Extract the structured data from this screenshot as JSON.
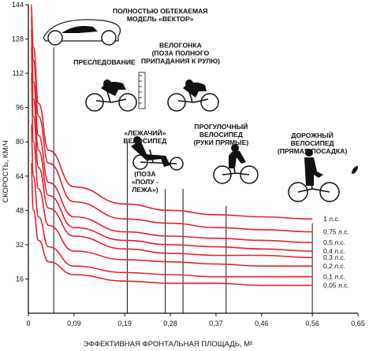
{
  "chart_data": {
    "type": "line",
    "xlabel": "ЭФФЕКТИВНАЯ ФРОНТАЛЬНАЯ ПЛОЩАДЬ, М²",
    "ylabel": "СКОРОСТЬ, КМ/Ч",
    "xlim": [
      0,
      0.65
    ],
    "ylim": [
      0,
      144
    ],
    "x_ticks": [
      "0",
      "0,09",
      "0,19",
      "0,28",
      "0,37",
      "0,46",
      "0,56",
      "0,65"
    ],
    "y_ticks": [
      "16",
      "32",
      "48",
      "64",
      "80",
      "96",
      "112",
      "128",
      "144"
    ],
    "grid": false,
    "series": [
      {
        "name": "1 л.с.",
        "x": [
          0.005,
          0.01,
          0.02,
          0.04,
          0.09,
          0.19,
          0.28,
          0.37,
          0.46,
          0.56
        ],
        "y": [
          144,
          124,
          98,
          76,
          59,
          51,
          48,
          46,
          45,
          44
        ]
      },
      {
        "name": "0,75 л.с.",
        "x": [
          0.005,
          0.01,
          0.02,
          0.04,
          0.09,
          0.19,
          0.28,
          0.37,
          0.46,
          0.56
        ],
        "y": [
          144,
          118,
          92,
          70,
          52,
          44,
          42,
          40,
          39,
          38
        ]
      },
      {
        "name": "0,5 л.с.",
        "x": [
          0.005,
          0.01,
          0.02,
          0.04,
          0.09,
          0.19,
          0.28,
          0.37,
          0.46,
          0.56
        ],
        "y": [
          138,
          108,
          83,
          61,
          45,
          38,
          36,
          35,
          34,
          33
        ]
      },
      {
        "name": "0,4 л.с.",
        "x": [
          0.005,
          0.01,
          0.02,
          0.04,
          0.09,
          0.19,
          0.28,
          0.37,
          0.46,
          0.56
        ],
        "y": [
          132,
          100,
          76,
          55,
          40,
          34,
          32,
          31,
          30,
          29
        ]
      },
      {
        "name": "0,3 л.с.",
        "x": [
          0.005,
          0.01,
          0.02,
          0.04,
          0.09,
          0.19,
          0.28,
          0.37,
          0.46,
          0.56
        ],
        "y": [
          124,
          92,
          68,
          49,
          36,
          30,
          28,
          27,
          27,
          26
        ]
      },
      {
        "name": "0,2 л.с.",
        "x": [
          0.005,
          0.01,
          0.02,
          0.04,
          0.09,
          0.19,
          0.28,
          0.37,
          0.46,
          0.56
        ],
        "y": [
          112,
          80,
          58,
          41,
          29,
          25,
          24,
          23,
          22,
          22
        ]
      },
      {
        "name": "0,1 л.с.",
        "x": [
          0.005,
          0.01,
          0.02,
          0.04,
          0.09,
          0.19,
          0.28,
          0.37,
          0.46,
          0.56
        ],
        "y": [
          88,
          64,
          45,
          31,
          22,
          19,
          18,
          17,
          17,
          17
        ]
      },
      {
        "name": "0,05 л.с.",
        "x": [
          0.005,
          0.01,
          0.02,
          0.04,
          0.09,
          0.19,
          0.28,
          0.37,
          0.46,
          0.56
        ],
        "y": [
          70,
          48,
          34,
          24,
          18,
          15,
          14,
          14,
          13,
          13
        ]
      }
    ],
    "markers": [
      {
        "x": 0.05,
        "y_top": 124
      },
      {
        "x": 0.195,
        "y_top": 80
      },
      {
        "x": 0.27,
        "y_top": 58
      },
      {
        "x": 0.305,
        "y_top": 58
      },
      {
        "x": 0.39,
        "y_top": 50
      },
      {
        "x": 0.56,
        "y_top": 42
      }
    ],
    "line_color": "#e8202a",
    "marker_color": "#111111",
    "annotations": [
      {
        "lines": [
          "ПОЛНОСТЬЮ ОБТЕКАЕМАЯ",
          "МОДЕЛЬ «ВЕКТОР»"
        ],
        "x": 0.26,
        "y": 140
      },
      {
        "lines": [
          "ПРЕСЛЕДОВАНИЕ"
        ],
        "x": 0.15,
        "y": 116
      },
      {
        "lines": [
          "ВЕЛОГОНКА",
          "(ПОЗА ПОЛНОГО",
          "ПРИПАДАНИЯ К РУЛЮ)"
        ],
        "x": 0.3,
        "y": 124
      },
      {
        "lines": [
          "«ЛЕЖАЧИЙ»",
          "ВЕЛОСИПЕД"
        ],
        "x": 0.23,
        "y": 83
      },
      {
        "lines": [
          "(ПОЗА",
          "«ПОЛУ -",
          "ЛЕЖА»)"
        ],
        "x": 0.23,
        "y": 64
      },
      {
        "lines": [
          "ПРОГУЛОЧНЫЙ",
          "ВЕЛОСИПЕД",
          "(РУКИ ПРЯМЫЕ)"
        ],
        "x": 0.38,
        "y": 86
      },
      {
        "lines": [
          "ДОРОЖНЫЙ",
          "ВЕЛОСИПЕД",
          "(ПРЯМАЯ ПОСАДКА)"
        ],
        "x": 0.56,
        "y": 82
      }
    ]
  }
}
